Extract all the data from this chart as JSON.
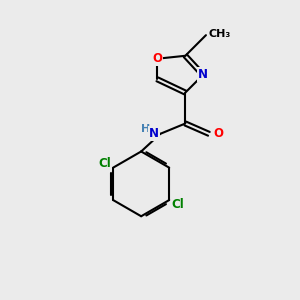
{
  "bg_color": "#ebebeb",
  "bond_color": "#000000",
  "bond_width": 1.5,
  "atom_colors": {
    "O": "#ff0000",
    "N": "#0000cd",
    "Cl": "#008000",
    "C": "#000000",
    "H": "#4682b4"
  },
  "font_size": 8.5
}
